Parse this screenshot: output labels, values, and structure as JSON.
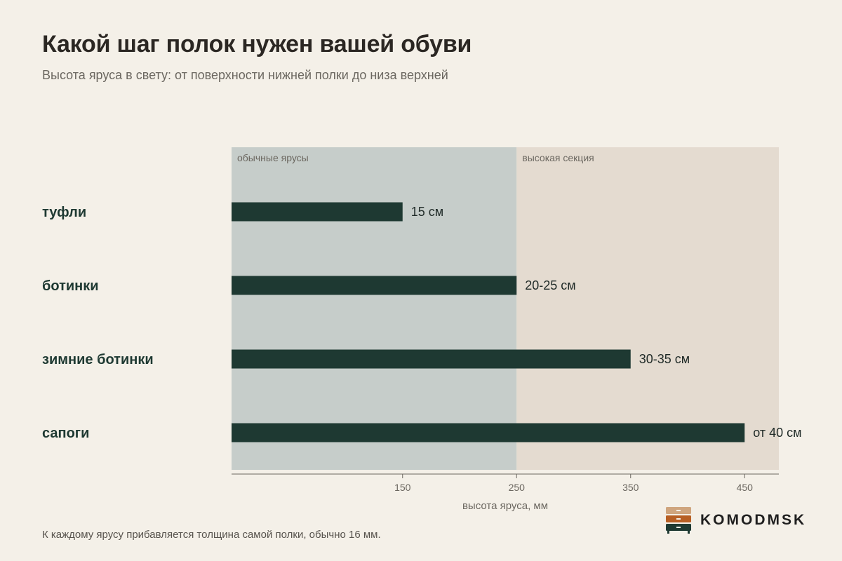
{
  "header": {
    "title": "Какой шаг полок нужен вашей обуви",
    "subtitle": "Высота яруса в свету: от поверхности нижней полки до низа верхней"
  },
  "footer": {
    "note": "К каждому ярусу прибавляется толщина самой полки, обычно 16 мм.",
    "brand": "KOMODMSK"
  },
  "colors": {
    "background": "#f4f0e8",
    "bar": "#1e3932",
    "zone_standard": "#c6cdca",
    "zone_tall": "#e4dbd0",
    "category_label": "#1e3932",
    "axis": "#6b6760"
  },
  "chart_data": {
    "type": "bar",
    "orientation": "horizontal",
    "categories": [
      "туфли",
      "ботинки",
      "зимние ботинки",
      "сапоги"
    ],
    "values": [
      150,
      250,
      350,
      450
    ],
    "value_labels": [
      "15 см",
      "20-25 см",
      "30-35 см",
      "от 40 см"
    ],
    "xlabel": "высота яруса, мм",
    "xticks": [
      150,
      250,
      350,
      450
    ],
    "xlim": [
      0,
      480
    ],
    "zones": [
      {
        "label": "обычные ярусы",
        "from": 0,
        "to": 250
      },
      {
        "label": "высокая секция",
        "from": 250,
        "to": 480
      }
    ],
    "grid": false
  }
}
